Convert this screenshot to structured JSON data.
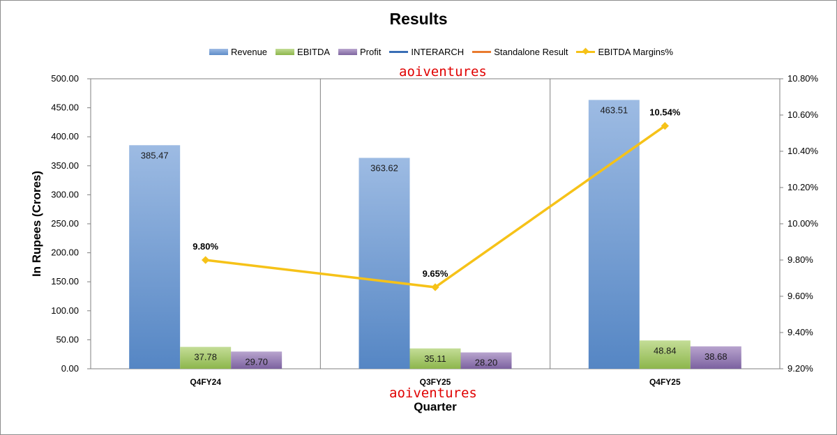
{
  "chart_data": {
    "type": "bar",
    "title": "Results",
    "xlabel": "Quarter",
    "ylabel": "In Rupees (Crores)",
    "categories": [
      "Q4FY24",
      "Q3FY25",
      "Q4FY25"
    ],
    "ylim": [
      0,
      500
    ],
    "yticks": [
      "0.00",
      "50.00",
      "100.00",
      "150.00",
      "200.00",
      "250.00",
      "300.00",
      "350.00",
      "400.00",
      "450.00",
      "500.00"
    ],
    "y2lim": [
      9.2,
      10.8
    ],
    "y2ticks": [
      "9.20%",
      "9.40%",
      "9.60%",
      "9.80%",
      "10.00%",
      "10.20%",
      "10.40%",
      "10.60%",
      "10.80%"
    ],
    "legend_position": "top",
    "series": [
      {
        "name": "Revenue",
        "values": [
          385.47,
          363.62,
          463.51
        ],
        "labels": [
          "385.47",
          "363.62",
          "463.51"
        ],
        "color": "#6f9bd3"
      },
      {
        "name": "EBITDA",
        "values": [
          37.78,
          35.11,
          48.84
        ],
        "labels": [
          "37.78",
          "35.11",
          "48.84"
        ],
        "color": "#9cc25b"
      },
      {
        "name": "Profit",
        "values": [
          29.7,
          28.2,
          38.68
        ],
        "labels": [
          "29.70",
          "28.20",
          "38.68"
        ],
        "color": "#8e74aa"
      }
    ],
    "legend_lines": [
      {
        "name": "INTERARCH",
        "color": "#3a6eb5"
      },
      {
        "name": "Standalone Result",
        "color": "#e97b2e"
      }
    ],
    "line_series": {
      "name": "EBITDA Margins%",
      "values": [
        9.8,
        9.65,
        10.54
      ],
      "labels": [
        "9.80%",
        "9.65%",
        "10.54%"
      ],
      "color": "#f6c218"
    }
  },
  "watermark": "aoiventures"
}
